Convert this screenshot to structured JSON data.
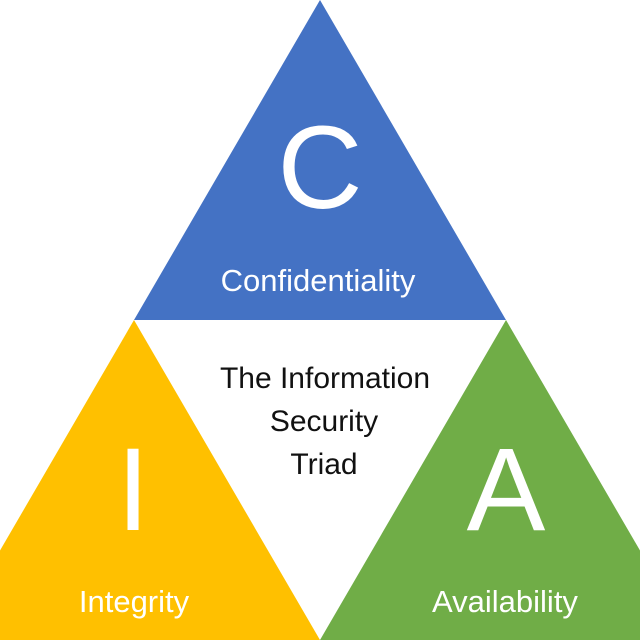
{
  "title": {
    "lines": [
      "The Information",
      "Security",
      "Triad"
    ]
  },
  "confidentiality": {
    "letter": "C",
    "label": "Confidentiality",
    "color": "#4472C4"
  },
  "integrity": {
    "letter": "I",
    "label": "Integrity",
    "color": "#FFC000"
  },
  "availability": {
    "letter": "A",
    "label": "Availability",
    "color": "#70AD47"
  }
}
